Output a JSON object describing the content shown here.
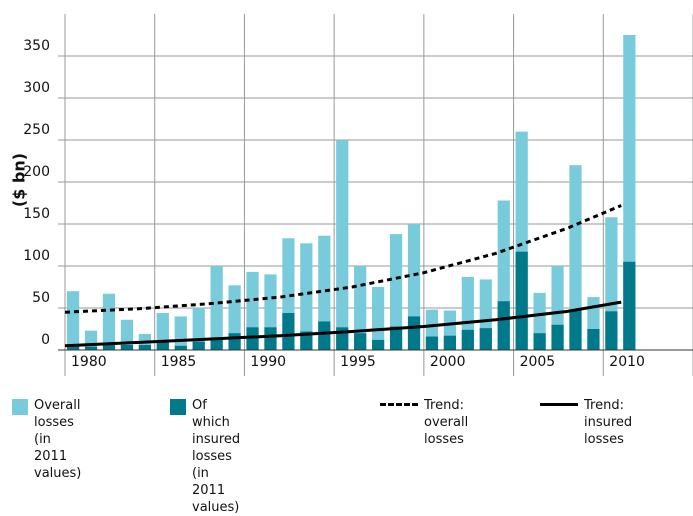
{
  "chart_data": {
    "type": "bar",
    "bar_mode": "overlay",
    "ylabel": "($ bn)",
    "x": [
      1980,
      1981,
      1982,
      1983,
      1984,
      1985,
      1986,
      1987,
      1988,
      1989,
      1990,
      1991,
      1992,
      1993,
      1994,
      1995,
      1996,
      1997,
      1998,
      1999,
      2000,
      2001,
      2002,
      2003,
      2004,
      2005,
      2006,
      2007,
      2008,
      2009,
      2010,
      2011
    ],
    "xlim": [
      1980,
      2015
    ],
    "xticks": [
      1980,
      1985,
      1990,
      1995,
      2000,
      2005,
      2010
    ],
    "ylim": [
      0,
      400
    ],
    "yticks": [
      0,
      50,
      100,
      150,
      200,
      250,
      300,
      350
    ],
    "grid": true,
    "series": [
      {
        "name": "Overall losses\n(in 2011 values)",
        "color": "#77cbdb",
        "values": [
          70,
          23,
          67,
          36,
          19,
          44,
          40,
          50,
          100,
          77,
          93,
          90,
          133,
          127,
          136,
          250,
          100,
          75,
          138,
          150,
          48,
          47,
          87,
          84,
          178,
          260,
          68,
          100,
          220,
          63,
          158,
          375
        ]
      },
      {
        "name": "Of which insured losses\n(in 2011 values)",
        "color": "#007a8a",
        "values": [
          5,
          4,
          6,
          6,
          6,
          10,
          5,
          10,
          12,
          20,
          27,
          27,
          44,
          22,
          34,
          27,
          20,
          12,
          28,
          40,
          16,
          17,
          24,
          26,
          58,
          117,
          20,
          30,
          48,
          25,
          46,
          105
        ]
      }
    ],
    "trends": [
      {
        "name": "Trend:\noverall losses",
        "color": "#000000",
        "dashed": true,
        "x": [
          1980,
          1984,
          1988,
          1992,
          1996,
          2000,
          2004,
          2008,
          2011
        ],
        "values": [
          45,
          49,
          55,
          63,
          75,
          92,
          115,
          145,
          172
        ]
      },
      {
        "name": "Trend:\ninsured losses",
        "color": "#000000",
        "dashed": false,
        "x": [
          1980,
          1984,
          1988,
          1992,
          1996,
          2000,
          2004,
          2008,
          2011
        ],
        "values": [
          5,
          9,
          13,
          17,
          22,
          28,
          36,
          46,
          57
        ]
      }
    ]
  }
}
